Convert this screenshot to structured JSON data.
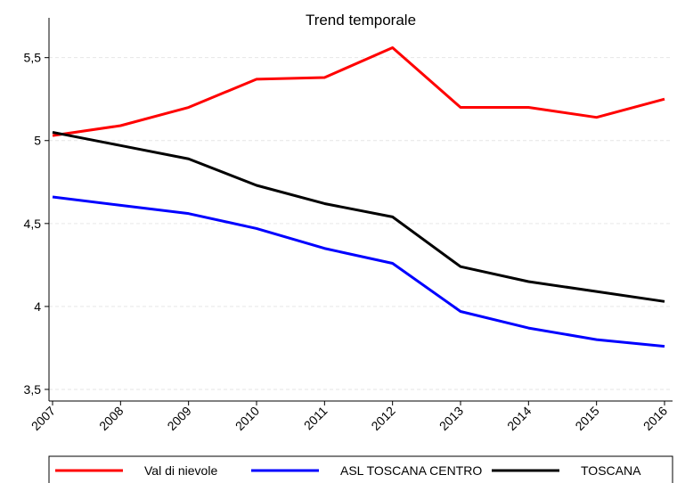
{
  "chart_data": {
    "type": "line",
    "title": "Trend temporale",
    "x": [
      2007,
      2008,
      2009,
      2010,
      2011,
      2012,
      2013,
      2014,
      2015,
      2016
    ],
    "series": [
      {
        "name": "Val di nievole",
        "color": "#ff0000",
        "values": [
          5.03,
          5.09,
          5.2,
          5.37,
          5.38,
          5.56,
          5.2,
          5.2,
          5.14,
          5.25
        ]
      },
      {
        "name": "ASL TOSCANA CENTRO",
        "color": "#0000ff",
        "values": [
          4.66,
          4.61,
          4.56,
          4.47,
          4.35,
          4.26,
          3.97,
          3.87,
          3.8,
          3.76
        ]
      },
      {
        "name": "TOSCANA",
        "color": "#000000",
        "values": [
          5.05,
          4.97,
          4.89,
          4.73,
          4.62,
          4.54,
          4.24,
          4.15,
          4.09,
          4.03
        ]
      }
    ],
    "xlim": [
      2007,
      2016
    ],
    "xticks": [
      2007,
      2008,
      2009,
      2010,
      2011,
      2012,
      2013,
      2014,
      2015,
      2016
    ],
    "ylim": [
      3.43,
      5.74
    ],
    "yticks": [
      {
        "value": 3.5,
        "label": "3,5"
      },
      4,
      {
        "value": 4.5,
        "label": "4,5"
      },
      5,
      {
        "value": 5.5,
        "label": "5,5"
      }
    ],
    "grid": true,
    "legend": "bottom"
  }
}
